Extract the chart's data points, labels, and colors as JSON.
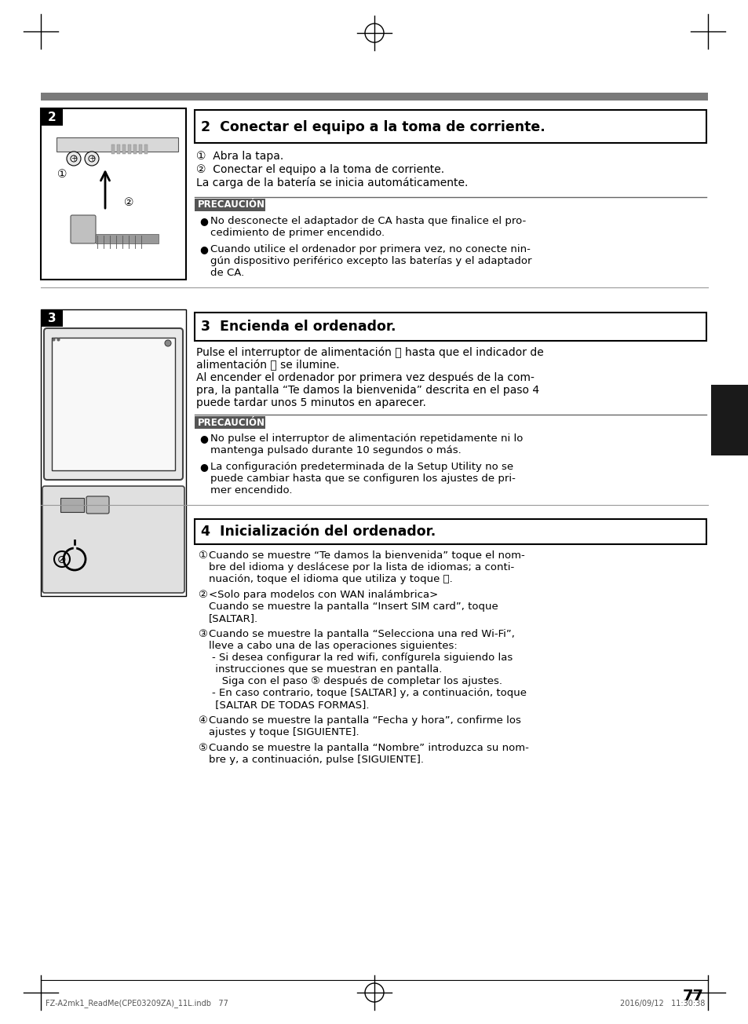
{
  "bg_color": "#ffffff",
  "page_number": "77",
  "gray_bar_color": "#7a7a7a",
  "dark_block_color": "#1a1a1a",
  "precaution_bg": "#555555",
  "line_color": "#aaaaaa",
  "sec2_title": "2  Conectar el equipo a la toma de corriente.",
  "sec2_steps": [
    "①  Abra la tapa.",
    "②  Conectar el equipo a la toma de corriente.",
    "La carga de la batería se inicia automáticamente."
  ],
  "precaucion_label": "PRECAUCIÓN",
  "sec2_prec_items": [
    [
      "No desconecte el adaptador de CA hasta que finalice el pro-",
      "cedimiento de primer encendido."
    ],
    [
      "Cuando utilice el ordenador por primera vez, no conecte nin-",
      "gún dispositivo periférico excepto las baterías y el adaptador",
      "de CA."
    ]
  ],
  "sec3_title": "3  Encienda el ordenador.",
  "sec3_body_lines": [
    "Pulse el interruptor de alimentación ⏻ hasta que el indicador de",
    "alimentación Ⓙ se ilumine.",
    "Al encender el ordenador por primera vez después de la com-",
    "pra, la pantalla “Te damos la bienvenida” descrita en el paso 4",
    "puede tardar unos 5 minutos en aparecer."
  ],
  "sec3_prec_items": [
    [
      "No pulse el interruptor de alimentación repetidamente ni lo",
      "mantenga pulsado durante 10 segundos o más."
    ],
    [
      "La configuración predeterminada de la Setup Utility no se",
      "puede cambiar hasta que se configuren los ajustes de pri-",
      "mer encendido."
    ]
  ],
  "sec4_title": "4  Inicialización del ordenador.",
  "sec4_steps": [
    [
      "①",
      "Cuando se muestre “Te damos la bienvenida” toque el nom-",
      "bre del idioma y deslácese por la lista de idiomas; a conti-",
      "nuación, toque el idioma que utiliza y toque ➕."
    ],
    [
      "②",
      "<Solo para modelos con WAN inalámbrica>",
      "Cuando se muestre la pantalla “Insert SIM card”, toque",
      "[SALTAR]."
    ],
    [
      "③",
      "Cuando se muestre la pantalla “Selecciona una red Wi-Fi”,",
      "lleve a cabo una de las operaciones siguientes:",
      "- Si desea configurar la red wifi, confígurela siguiendo las",
      " instrucciones que se muestran en pantalla.",
      "   Siga con el paso ⑤ después de completar los ajustes.",
      "- En caso contrario, toque [SALTAR] y, a continuación, toque",
      " [SALTAR DE TODAS FORMAS]."
    ],
    [
      "④",
      "Cuando se muestre la pantalla “Fecha y hora”, confirme los",
      "ajustes y toque [SIGUIENTE]."
    ],
    [
      "⑤",
      "Cuando se muestre la pantalla “Nombre” introduzca su nom-",
      "bre y, a continuación, pulse [SIGUIENTE]."
    ]
  ],
  "footer_left": "FZ-A2mk1_ReadMe(CPE03209ZA)_11L.indb   77",
  "footer_right": "2016/09/12   11:30:38"
}
